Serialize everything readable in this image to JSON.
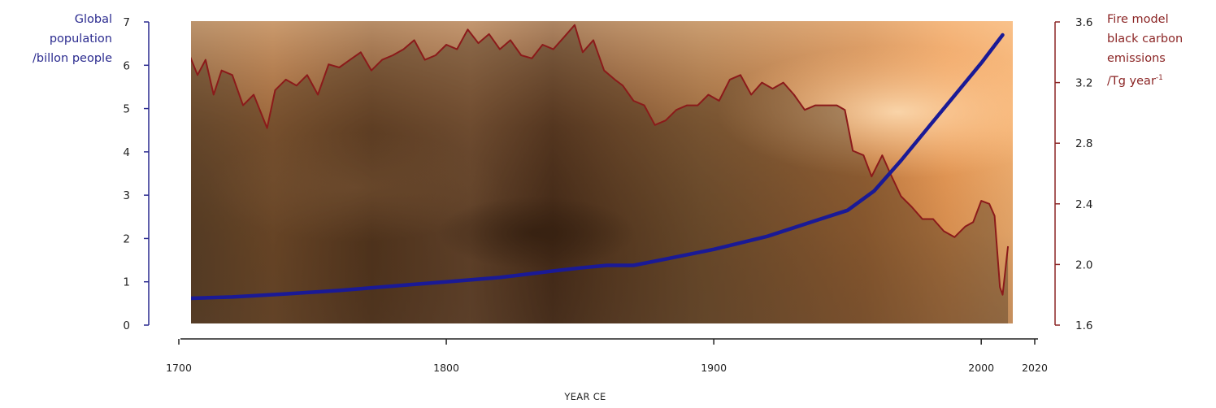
{
  "chart_data": {
    "type": "line",
    "xlabel": "YEAR CE",
    "ylabel_left": {
      "line1": "Global",
      "line2": "population",
      "line3": "/billon people"
    },
    "ylabel_right": {
      "line1": "Fire model",
      "line2": "black carbon",
      "line3": "emissions",
      "line4_base": "/Tg year",
      "line4_sup": "-1"
    },
    "xlim": [
      1700,
      2020
    ],
    "ylim_left": [
      0,
      7
    ],
    "ylim_right": [
      1.6,
      3.6
    ],
    "x_ticks": [
      "1700",
      "1800",
      "1900",
      "2000",
      "2020"
    ],
    "y_ticks_left": [
      "0",
      "1",
      "2",
      "3",
      "4",
      "5",
      "6",
      "7"
    ],
    "y_ticks_right": [
      "1.6",
      "2.0",
      "2.4",
      "2.8",
      "3.2",
      "3.6"
    ],
    "background": "fire photograph behind the data",
    "colors": {
      "population": "#1a1a96",
      "emissions": "#8b1a1a",
      "left_axis": "#2b2b8f",
      "right_axis": "#8b2525"
    },
    "series": [
      {
        "name": "Global population",
        "axis": "left",
        "x": [
          1704,
          1720,
          1740,
          1760,
          1780,
          1800,
          1820,
          1840,
          1850,
          1860,
          1870,
          1880,
          1900,
          1920,
          1940,
          1950,
          1960,
          1970,
          1980,
          1990,
          2000,
          2008
        ],
        "values": [
          0.62,
          0.65,
          0.72,
          0.8,
          0.9,
          1.0,
          1.1,
          1.25,
          1.32,
          1.38,
          1.38,
          1.5,
          1.75,
          2.05,
          2.45,
          2.65,
          3.1,
          3.8,
          4.55,
          5.3,
          6.05,
          6.7
        ]
      },
      {
        "name": "Fire model black carbon emissions",
        "axis": "right",
        "x": [
          1704,
          1707,
          1710,
          1713,
          1716,
          1720,
          1724,
          1728,
          1733,
          1736,
          1740,
          1744,
          1748,
          1752,
          1756,
          1760,
          1764,
          1768,
          1772,
          1776,
          1780,
          1784,
          1788,
          1792,
          1796,
          1800,
          1804,
          1808,
          1812,
          1816,
          1820,
          1824,
          1828,
          1832,
          1836,
          1840,
          1844,
          1848,
          1851,
          1855,
          1859,
          1863,
          1866,
          1870,
          1874,
          1878,
          1882,
          1886,
          1890,
          1894,
          1898,
          1902,
          1906,
          1910,
          1914,
          1918,
          1922,
          1926,
          1930,
          1934,
          1938,
          1942,
          1946,
          1949,
          1952,
          1956,
          1959,
          1963,
          1966,
          1970,
          1974,
          1978,
          1982,
          1986,
          1990,
          1994,
          1997,
          2000,
          2003,
          2005,
          2007,
          2008,
          2010
        ],
        "values": [
          3.38,
          3.25,
          3.35,
          3.12,
          3.28,
          3.25,
          3.05,
          3.12,
          2.9,
          3.15,
          3.22,
          3.18,
          3.25,
          3.12,
          3.32,
          3.3,
          3.35,
          3.4,
          3.28,
          3.35,
          3.38,
          3.42,
          3.48,
          3.35,
          3.38,
          3.45,
          3.42,
          3.55,
          3.46,
          3.52,
          3.42,
          3.48,
          3.38,
          3.36,
          3.45,
          3.42,
          3.5,
          3.58,
          3.4,
          3.48,
          3.28,
          3.22,
          3.18,
          3.08,
          3.05,
          2.92,
          2.95,
          3.02,
          3.05,
          3.05,
          3.12,
          3.08,
          3.22,
          3.25,
          3.12,
          3.2,
          3.16,
          3.2,
          3.12,
          3.02,
          3.05,
          3.05,
          3.05,
          3.02,
          2.75,
          2.72,
          2.58,
          2.72,
          2.6,
          2.45,
          2.38,
          2.3,
          2.3,
          2.22,
          2.18,
          2.25,
          2.28,
          2.42,
          2.4,
          2.32,
          1.85,
          1.8,
          2.12
        ]
      }
    ]
  }
}
